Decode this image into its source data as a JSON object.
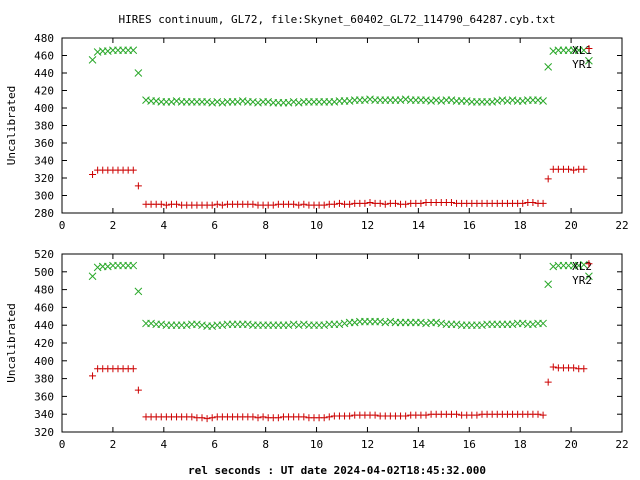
{
  "chart_data": {
    "title": "HIRES continuum, GL72, file:Skynet_60402_GL72_114790_64287.cyb.txt",
    "xlabel": "rel seconds : UT date 2024-04-02T18:45:32.000",
    "colors": {
      "XL": "#2aa82a",
      "YR": "#cc0000"
    },
    "panels": [
      {
        "type": "scatter",
        "ylabel": "Uncalibrated",
        "xlim": [
          0,
          22
        ],
        "ylim": [
          280,
          480
        ],
        "xticks": [
          "0",
          "2",
          "4",
          "6",
          "8",
          "10",
          "12",
          "14",
          "16",
          "18",
          "20",
          "22"
        ],
        "yticks": [
          "280",
          "300",
          "320",
          "340",
          "360",
          "380",
          "400",
          "420",
          "440",
          "460",
          "480"
        ],
        "series": [
          {
            "name": "XL1",
            "marker": "x",
            "x": [
              1.2,
              1.4,
              1.6,
              1.8,
              2.0,
              2.2,
              2.4,
              2.6,
              2.8,
              3.0,
              3.3,
              3.5,
              3.7,
              3.9,
              4.1,
              4.3,
              4.5,
              4.7,
              4.9,
              5.1,
              5.3,
              5.5,
              5.7,
              5.9,
              6.1,
              6.3,
              6.5,
              6.7,
              6.9,
              7.1,
              7.3,
              7.5,
              7.7,
              7.9,
              8.1,
              8.3,
              8.5,
              8.7,
              8.9,
              9.1,
              9.3,
              9.5,
              9.7,
              9.9,
              10.1,
              10.3,
              10.5,
              10.7,
              10.9,
              11.1,
              11.3,
              11.5,
              11.7,
              11.9,
              12.1,
              12.3,
              12.5,
              12.7,
              12.9,
              13.1,
              13.3,
              13.5,
              13.7,
              13.9,
              14.1,
              14.3,
              14.5,
              14.7,
              14.9,
              15.1,
              15.3,
              15.5,
              15.7,
              15.9,
              16.1,
              16.3,
              16.5,
              16.7,
              16.9,
              17.1,
              17.3,
              17.5,
              17.7,
              17.9,
              18.1,
              18.3,
              18.5,
              18.7,
              18.9,
              19.1,
              19.3,
              19.5,
              19.7,
              19.9,
              20.1,
              20.3,
              20.5,
              20.7
            ],
            "y": [
              455,
              464,
              465,
              465,
              466,
              466,
              466,
              466,
              466,
              440,
              409,
              408,
              408,
              407,
              407,
              407,
              408,
              407,
              407,
              407,
              407,
              407,
              407,
              406,
              407,
              406,
              407,
              407,
              407,
              408,
              407,
              407,
              406,
              407,
              407,
              406,
              406,
              406,
              406,
              407,
              406,
              407,
              407,
              407,
              407,
              407,
              407,
              407,
              408,
              408,
              408,
              409,
              409,
              409,
              410,
              409,
              409,
              409,
              409,
              409,
              409,
              410,
              409,
              409,
              409,
              409,
              408,
              409,
              408,
              409,
              409,
              408,
              408,
              408,
              407,
              407,
              407,
              407,
              407,
              408,
              409,
              408,
              409,
              408,
              408,
              409,
              409,
              409,
              408,
              447,
              465,
              466,
              466,
              466,
              466,
              466,
              466,
              454
            ]
          },
          {
            "name": "YR1",
            "marker": "+",
            "x": [
              1.2,
              1.4,
              1.6,
              1.8,
              2.0,
              2.2,
              2.4,
              2.6,
              2.8,
              3.0,
              3.3,
              3.5,
              3.7,
              3.9,
              4.1,
              4.3,
              4.5,
              4.7,
              4.9,
              5.1,
              5.3,
              5.5,
              5.7,
              5.9,
              6.1,
              6.3,
              6.5,
              6.7,
              6.9,
              7.1,
              7.3,
              7.5,
              7.7,
              7.9,
              8.1,
              8.3,
              8.5,
              8.7,
              8.9,
              9.1,
              9.3,
              9.5,
              9.7,
              9.9,
              10.1,
              10.3,
              10.5,
              10.7,
              10.9,
              11.1,
              11.3,
              11.5,
              11.7,
              11.9,
              12.1,
              12.3,
              12.5,
              12.7,
              12.9,
              13.1,
              13.3,
              13.5,
              13.7,
              13.9,
              14.1,
              14.3,
              14.5,
              14.7,
              14.9,
              15.1,
              15.3,
              15.5,
              15.7,
              15.9,
              16.1,
              16.3,
              16.5,
              16.7,
              16.9,
              17.1,
              17.3,
              17.5,
              17.7,
              17.9,
              18.1,
              18.3,
              18.5,
              18.7,
              18.9,
              19.1,
              19.3,
              19.5,
              19.7,
              19.9,
              20.1,
              20.3,
              20.5,
              20.7
            ],
            "y": [
              324,
              329,
              329,
              329,
              329,
              329,
              329,
              329,
              329,
              311,
              290,
              290,
              290,
              290,
              289,
              290,
              290,
              289,
              289,
              289,
              289,
              289,
              289,
              289,
              290,
              289,
              290,
              290,
              290,
              290,
              290,
              290,
              289,
              289,
              289,
              289,
              290,
              290,
              290,
              290,
              289,
              290,
              289,
              289,
              289,
              289,
              290,
              290,
              291,
              290,
              290,
              291,
              291,
              291,
              292,
              291,
              291,
              290,
              291,
              291,
              290,
              290,
              291,
              291,
              291,
              292,
              292,
              292,
              292,
              292,
              292,
              291,
              291,
              291,
              291,
              291,
              291,
              291,
              291,
              291,
              291,
              291,
              291,
              291,
              291,
              292,
              292,
              291,
              291,
              319,
              330,
              330,
              330,
              330,
              329,
              330,
              330,
              468
            ]
          }
        ]
      },
      {
        "type": "scatter",
        "ylabel": "Uncalibrated",
        "xlim": [
          0,
          22
        ],
        "ylim": [
          320,
          520
        ],
        "xticks": [
          "0",
          "2",
          "4",
          "6",
          "8",
          "10",
          "12",
          "14",
          "16",
          "18",
          "20",
          "22"
        ],
        "yticks": [
          "320",
          "340",
          "360",
          "380",
          "400",
          "420",
          "440",
          "460",
          "480",
          "500",
          "520"
        ],
        "series": [
          {
            "name": "XL2",
            "marker": "x",
            "x": [
              1.2,
              1.4,
              1.6,
              1.8,
              2.0,
              2.2,
              2.4,
              2.6,
              2.8,
              3.0,
              3.3,
              3.5,
              3.7,
              3.9,
              4.1,
              4.3,
              4.5,
              4.7,
              4.9,
              5.1,
              5.3,
              5.5,
              5.7,
              5.9,
              6.1,
              6.3,
              6.5,
              6.7,
              6.9,
              7.1,
              7.3,
              7.5,
              7.7,
              7.9,
              8.1,
              8.3,
              8.5,
              8.7,
              8.9,
              9.1,
              9.3,
              9.5,
              9.7,
              9.9,
              10.1,
              10.3,
              10.5,
              10.7,
              10.9,
              11.1,
              11.3,
              11.5,
              11.7,
              11.9,
              12.1,
              12.3,
              12.5,
              12.7,
              12.9,
              13.1,
              13.3,
              13.5,
              13.7,
              13.9,
              14.1,
              14.3,
              14.5,
              14.7,
              14.9,
              15.1,
              15.3,
              15.5,
              15.7,
              15.9,
              16.1,
              16.3,
              16.5,
              16.7,
              16.9,
              17.1,
              17.3,
              17.5,
              17.7,
              17.9,
              18.1,
              18.3,
              18.5,
              18.7,
              18.9,
              19.1,
              19.3,
              19.5,
              19.7,
              19.9,
              20.1,
              20.3,
              20.5,
              20.7
            ],
            "y": [
              495,
              505,
              506,
              506,
              507,
              507,
              507,
              507,
              507,
              478,
              442,
              442,
              441,
              441,
              440,
              440,
              440,
              440,
              440,
              441,
              441,
              440,
              439,
              439,
              440,
              440,
              441,
              441,
              441,
              441,
              441,
              440,
              440,
              440,
              440,
              440,
              440,
              440,
              440,
              441,
              440,
              441,
              440,
              440,
              440,
              440,
              441,
              441,
              441,
              442,
              443,
              443,
              444,
              444,
              444,
              444,
              444,
              443,
              444,
              443,
              443,
              443,
              443,
              443,
              443,
              442,
              443,
              443,
              442,
              441,
              441,
              441,
              440,
              440,
              440,
              440,
              440,
              441,
              441,
              441,
              441,
              441,
              441,
              442,
              442,
              441,
              441,
              442,
              442,
              486,
              506,
              507,
              507,
              507,
              507,
              507,
              508,
              495
            ]
          },
          {
            "name": "YR2",
            "marker": "+",
            "x": [
              1.2,
              1.4,
              1.6,
              1.8,
              2.0,
              2.2,
              2.4,
              2.6,
              2.8,
              3.0,
              3.3,
              3.5,
              3.7,
              3.9,
              4.1,
              4.3,
              4.5,
              4.7,
              4.9,
              5.1,
              5.3,
              5.5,
              5.7,
              5.9,
              6.1,
              6.3,
              6.5,
              6.7,
              6.9,
              7.1,
              7.3,
              7.5,
              7.7,
              7.9,
              8.1,
              8.3,
              8.5,
              8.7,
              8.9,
              9.1,
              9.3,
              9.5,
              9.7,
              9.9,
              10.1,
              10.3,
              10.5,
              10.7,
              10.9,
              11.1,
              11.3,
              11.5,
              11.7,
              11.9,
              12.1,
              12.3,
              12.5,
              12.7,
              12.9,
              13.1,
              13.3,
              13.5,
              13.7,
              13.9,
              14.1,
              14.3,
              14.5,
              14.7,
              14.9,
              15.1,
              15.3,
              15.5,
              15.7,
              15.9,
              16.1,
              16.3,
              16.5,
              16.7,
              16.9,
              17.1,
              17.3,
              17.5,
              17.7,
              17.9,
              18.1,
              18.3,
              18.5,
              18.7,
              18.9,
              19.1,
              19.3,
              19.5,
              19.7,
              19.9,
              20.1,
              20.3,
              20.5,
              20.7
            ],
            "y": [
              383,
              391,
              391,
              391,
              391,
              391,
              391,
              391,
              391,
              367,
              337,
              337,
              337,
              337,
              337,
              337,
              337,
              337,
              337,
              337,
              336,
              336,
              335,
              336,
              337,
              337,
              337,
              337,
              337,
              337,
              337,
              337,
              336,
              337,
              336,
              336,
              336,
              337,
              337,
              337,
              337,
              337,
              336,
              336,
              336,
              336,
              337,
              338,
              338,
              338,
              338,
              339,
              339,
              339,
              339,
              339,
              338,
              338,
              338,
              338,
              338,
              338,
              339,
              339,
              339,
              339,
              340,
              340,
              340,
              340,
              340,
              340,
              339,
              339,
              339,
              339,
              340,
              340,
              340,
              340,
              340,
              340,
              340,
              340,
              340,
              340,
              340,
              340,
              339,
              376,
              393,
              392,
              392,
              392,
              392,
              391,
              391,
              509
            ]
          }
        ]
      }
    ]
  }
}
